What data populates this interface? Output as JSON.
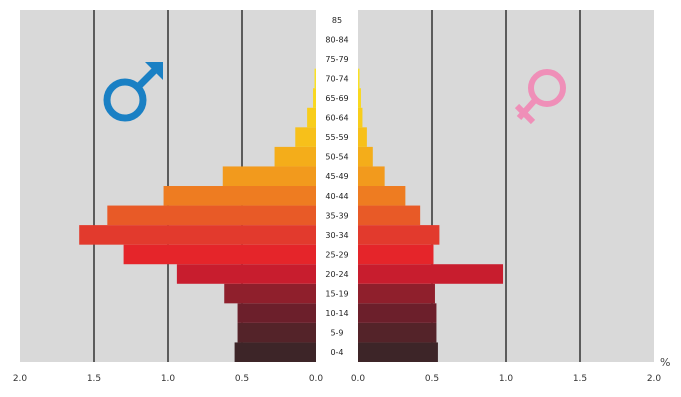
{
  "chart_data": {
    "type": "bar",
    "unit_label": "%",
    "male_symbol": "♂",
    "female_symbol": "♀",
    "age_groups": [
      "0-4",
      "5-9",
      "10-14",
      "15-19",
      "20-24",
      "25-29",
      "30-34",
      "35-39",
      "40-44",
      "45-49",
      "50-54",
      "55-59",
      "60-64",
      "65-69",
      "70-74",
      "75-79",
      "80-84",
      "85+"
    ],
    "age_labels": [
      "0-4",
      "5-9",
      "10-14",
      "15-19",
      "20-24",
      "25-29",
      "30-34",
      "35-39",
      "40-44",
      "45-49",
      "50-54",
      "55-59",
      "60-64",
      "65-69",
      "70-74",
      "75-79",
      "80-84",
      "85"
    ],
    "series": [
      {
        "values": [
          0.55,
          0.53,
          0.53,
          0.62,
          0.94,
          1.3,
          1.6,
          1.41,
          1.03,
          0.63,
          0.28,
          0.14,
          0.06,
          0.02,
          0.01,
          0.0,
          0.0,
          0.0
        ]
      },
      {
        "values": [
          0.54,
          0.53,
          0.53,
          0.52,
          0.98,
          0.51,
          0.55,
          0.42,
          0.32,
          0.18,
          0.1,
          0.06,
          0.03,
          0.02,
          0.01,
          0.0,
          0.0,
          0.0
        ]
      }
    ],
    "male_ticks": [
      "2.0",
      "1.5",
      "1.0",
      "0.5",
      "0.0"
    ],
    "female_ticks": [
      "0.0",
      "0.5",
      "1.0",
      "1.5",
      "2.0"
    ],
    "xlim": [
      0,
      2.0
    ],
    "grid": true,
    "colors": {
      "background": "#d9d9d9",
      "gridline": "#333333",
      "male_symbol": "#1a80c4",
      "female_symbol": "#ef8fb8",
      "bars": [
        "#3d2528",
        "#542329",
        "#6c1f2b",
        "#8f1f2c",
        "#c81d2e",
        "#e5252a",
        "#e23a2d",
        "#e85a27",
        "#ee7c21",
        "#f29a1d",
        "#f4ad1a",
        "#f7c01a",
        "#f8cd1b",
        "#f9d81f",
        "#fae123",
        "#fbe827",
        "#fcef2c",
        "#fdf432"
      ]
    }
  }
}
